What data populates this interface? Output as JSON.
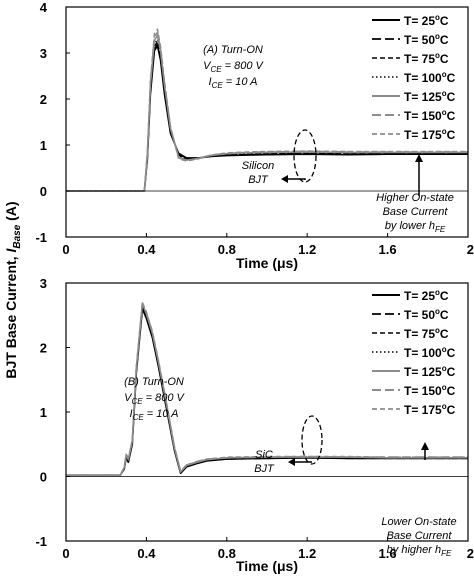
{
  "figure": {
    "ylabel_main": "BJT Base Current, ",
    "ylabel_var": "I",
    "ylabel_sub": "Base",
    "ylabel_unit": " (A)"
  },
  "chart_data": [
    {
      "type": "line",
      "xlabel": "Time (μs)",
      "xlim": [
        0,
        2
      ],
      "ylim": [
        -1,
        4
      ],
      "xticks": [
        "0",
        "0.4",
        "0.8",
        "1.2",
        "1.6",
        "2"
      ],
      "yticks": [
        "-1",
        "0",
        "1",
        "2",
        "3",
        "4"
      ],
      "legend_position": "top-right",
      "annotations": {
        "case_title": "(A) Turn-ON",
        "cond1_main": "V",
        "cond1_sub": "CE",
        "cond1_rest": " = 800 V",
        "cond2_main": "I",
        "cond2_sub": "CE",
        "cond2_rest": " = 10 A",
        "device_line1": "Silicon",
        "device_line2": "BJT",
        "note_line1": "Higher On-state",
        "note_line2": "Base Current",
        "note_line3_main": "by lower h",
        "note_line3_sub": "FE"
      },
      "series": [
        {
          "name": "T= 25°C",
          "color": "#000000",
          "dash": "solid",
          "width": 1.6,
          "x": [
            0,
            0.39,
            0.405,
            0.42,
            0.44,
            0.455,
            0.47,
            0.49,
            0.52,
            0.56,
            0.6,
            0.66,
            0.72,
            0.8,
            0.9,
            1.0,
            1.2,
            1.4,
            1.6,
            1.8,
            2.0
          ],
          "y": [
            0,
            0,
            0.7,
            2.1,
            3.05,
            3.15,
            2.85,
            2.1,
            1.25,
            0.82,
            0.72,
            0.72,
            0.75,
            0.77,
            0.78,
            0.79,
            0.8,
            0.79,
            0.8,
            0.8,
            0.8
          ]
        },
        {
          "name": "T= 50°C",
          "color": "#000000",
          "dash": "long",
          "width": 1.4,
          "x": [
            0,
            0.39,
            0.405,
            0.42,
            0.44,
            0.455,
            0.47,
            0.49,
            0.52,
            0.56,
            0.6,
            0.66,
            0.72,
            0.8,
            0.9,
            1.0,
            1.2,
            1.4,
            1.6,
            1.8,
            2.0
          ],
          "y": [
            0,
            0,
            0.72,
            2.15,
            3.1,
            3.2,
            2.9,
            2.15,
            1.28,
            0.8,
            0.71,
            0.72,
            0.75,
            0.78,
            0.79,
            0.8,
            0.81,
            0.8,
            0.81,
            0.81,
            0.81
          ]
        },
        {
          "name": "T= 75°C",
          "color": "#000000",
          "dash": "medium",
          "width": 1.2,
          "x": [
            0,
            0.39,
            0.405,
            0.42,
            0.44,
            0.455,
            0.47,
            0.49,
            0.52,
            0.56,
            0.6,
            0.66,
            0.72,
            0.8,
            0.9,
            1.0,
            1.2,
            1.4,
            1.6,
            1.8,
            2.0
          ],
          "y": [
            0,
            0,
            0.75,
            2.2,
            3.15,
            3.25,
            2.95,
            2.2,
            1.3,
            0.78,
            0.7,
            0.72,
            0.76,
            0.79,
            0.8,
            0.81,
            0.82,
            0.81,
            0.82,
            0.82,
            0.82
          ]
        },
        {
          "name": "T= 100°C",
          "color": "#000000",
          "dash": "dotted",
          "width": 1.2,
          "x": [
            0,
            0.39,
            0.405,
            0.42,
            0.44,
            0.455,
            0.47,
            0.49,
            0.52,
            0.56,
            0.6,
            0.66,
            0.72,
            0.8,
            0.9,
            1.0,
            1.2,
            1.4,
            1.6,
            1.8,
            2.0
          ],
          "y": [
            0,
            0,
            0.78,
            2.25,
            3.2,
            3.3,
            3.0,
            2.25,
            1.33,
            0.76,
            0.69,
            0.72,
            0.77,
            0.8,
            0.81,
            0.82,
            0.83,
            0.82,
            0.83,
            0.83,
            0.83
          ]
        },
        {
          "name": "T= 125°C",
          "color": "#8c8c8c",
          "dash": "solid",
          "width": 1.6,
          "x": [
            0,
            0.39,
            0.405,
            0.42,
            0.44,
            0.455,
            0.47,
            0.49,
            0.52,
            0.56,
            0.6,
            0.66,
            0.72,
            0.8,
            0.9,
            1.0,
            1.2,
            1.4,
            1.6,
            1.8,
            2.0
          ],
          "y": [
            0,
            0,
            0.8,
            2.3,
            3.28,
            3.38,
            3.05,
            2.3,
            1.36,
            0.74,
            0.67,
            0.71,
            0.77,
            0.81,
            0.83,
            0.84,
            0.85,
            0.84,
            0.84,
            0.84,
            0.84
          ]
        },
        {
          "name": "T= 150°C",
          "color": "#8c8c8c",
          "dash": "long",
          "width": 1.6,
          "x": [
            0,
            0.39,
            0.405,
            0.42,
            0.44,
            0.455,
            0.47,
            0.49,
            0.52,
            0.56,
            0.6,
            0.66,
            0.72,
            0.8,
            0.9,
            1.0,
            1.2,
            1.4,
            1.6,
            1.8,
            2.0
          ],
          "y": [
            0,
            0,
            0.82,
            2.35,
            3.35,
            3.45,
            3.1,
            2.35,
            1.38,
            0.72,
            0.66,
            0.71,
            0.78,
            0.82,
            0.84,
            0.85,
            0.86,
            0.85,
            0.85,
            0.85,
            0.85
          ]
        },
        {
          "name": "T= 175°C",
          "color": "#8c8c8c",
          "dash": "medium",
          "width": 1.4,
          "x": [
            0,
            0.39,
            0.405,
            0.42,
            0.44,
            0.455,
            0.47,
            0.49,
            0.52,
            0.56,
            0.6,
            0.66,
            0.72,
            0.8,
            0.9,
            1.0,
            1.2,
            1.4,
            1.6,
            1.8,
            2.0
          ],
          "y": [
            0,
            0,
            0.85,
            2.4,
            3.42,
            3.52,
            3.15,
            2.4,
            1.4,
            0.7,
            0.65,
            0.7,
            0.78,
            0.83,
            0.85,
            0.86,
            0.87,
            0.86,
            0.86,
            0.86,
            0.86
          ]
        }
      ]
    },
    {
      "type": "line",
      "xlabel": "Time (μs)",
      "xlim": [
        0,
        2
      ],
      "ylim": [
        -1,
        3
      ],
      "xticks": [
        "0",
        "0.4",
        "0.8",
        "1.2",
        "1.6",
        "2"
      ],
      "yticks": [
        "-1",
        "0",
        "1",
        "2",
        "3"
      ],
      "legend_position": "top-right",
      "annotations": {
        "case_title": "(B) Turn-ON",
        "cond1_main": "V",
        "cond1_sub": "CE",
        "cond1_rest": " = 800 V",
        "cond2_main": "I",
        "cond2_sub": "CE",
        "cond2_rest": " = 10 A",
        "device_line1": "SiC",
        "device_line2": "BJT",
        "note_line1": "Lower On-state",
        "note_line2": "Base Current",
        "note_line3_main": "by higher h",
        "note_line3_sub": "FE"
      },
      "series": [
        {
          "name": "T= 25°C",
          "color": "#000000",
          "dash": "solid",
          "width": 1.6,
          "x": [
            0,
            0.27,
            0.29,
            0.3,
            0.31,
            0.33,
            0.35,
            0.38,
            0.4,
            0.43,
            0.46,
            0.5,
            0.54,
            0.57,
            0.6,
            0.65,
            0.7,
            0.8,
            1.0,
            1.2,
            1.4,
            1.6,
            1.8,
            2.0
          ],
          "y": [
            0.02,
            0.02,
            0.12,
            0.3,
            0.22,
            0.5,
            1.6,
            2.6,
            2.45,
            2.15,
            1.7,
            1.05,
            0.4,
            0.05,
            0.15,
            0.2,
            0.24,
            0.27,
            0.28,
            0.29,
            0.28,
            0.28,
            0.28,
            0.28
          ]
        },
        {
          "name": "T= 50°C",
          "color": "#000000",
          "dash": "long",
          "width": 1.4,
          "x": [
            0,
            0.27,
            0.29,
            0.3,
            0.31,
            0.33,
            0.35,
            0.38,
            0.4,
            0.43,
            0.46,
            0.5,
            0.54,
            0.57,
            0.6,
            0.65,
            0.7,
            0.8,
            1.0,
            1.2,
            1.4,
            1.6,
            1.8,
            2.0
          ],
          "y": [
            0.02,
            0.02,
            0.12,
            0.31,
            0.23,
            0.52,
            1.62,
            2.62,
            2.47,
            2.17,
            1.72,
            1.07,
            0.41,
            0.06,
            0.16,
            0.21,
            0.25,
            0.27,
            0.28,
            0.29,
            0.28,
            0.28,
            0.28,
            0.28
          ]
        },
        {
          "name": "T= 75°C",
          "color": "#000000",
          "dash": "medium",
          "width": 1.2,
          "x": [
            0,
            0.27,
            0.29,
            0.3,
            0.31,
            0.33,
            0.35,
            0.38,
            0.4,
            0.43,
            0.46,
            0.5,
            0.54,
            0.57,
            0.6,
            0.65,
            0.7,
            0.8,
            1.0,
            1.2,
            1.4,
            1.6,
            1.8,
            2.0
          ],
          "y": [
            0.02,
            0.02,
            0.13,
            0.32,
            0.24,
            0.53,
            1.63,
            2.64,
            2.48,
            2.18,
            1.73,
            1.08,
            0.42,
            0.06,
            0.16,
            0.21,
            0.25,
            0.28,
            0.29,
            0.29,
            0.29,
            0.28,
            0.28,
            0.28
          ]
        },
        {
          "name": "T= 100°C",
          "color": "#000000",
          "dash": "dotted",
          "width": 1.2,
          "x": [
            0,
            0.27,
            0.29,
            0.3,
            0.31,
            0.33,
            0.35,
            0.38,
            0.4,
            0.43,
            0.46,
            0.5,
            0.54,
            0.57,
            0.6,
            0.65,
            0.7,
            0.8,
            1.0,
            1.2,
            1.4,
            1.6,
            1.8,
            2.0
          ],
          "y": [
            0.02,
            0.02,
            0.13,
            0.33,
            0.25,
            0.54,
            1.65,
            2.66,
            2.5,
            2.2,
            1.75,
            1.1,
            0.43,
            0.07,
            0.17,
            0.22,
            0.26,
            0.28,
            0.29,
            0.3,
            0.29,
            0.29,
            0.29,
            0.29
          ]
        },
        {
          "name": "T= 125°C",
          "color": "#8c8c8c",
          "dash": "solid",
          "width": 1.6,
          "x": [
            0,
            0.27,
            0.29,
            0.3,
            0.31,
            0.33,
            0.35,
            0.38,
            0.4,
            0.43,
            0.46,
            0.5,
            0.54,
            0.57,
            0.6,
            0.65,
            0.7,
            0.8,
            1.0,
            1.2,
            1.4,
            1.6,
            1.8,
            2.0
          ],
          "y": [
            0.02,
            0.02,
            0.14,
            0.34,
            0.26,
            0.55,
            1.67,
            2.68,
            2.52,
            2.22,
            1.77,
            1.12,
            0.44,
            0.07,
            0.17,
            0.22,
            0.26,
            0.29,
            0.3,
            0.3,
            0.3,
            0.29,
            0.29,
            0.29
          ]
        },
        {
          "name": "T= 150°C",
          "color": "#8c8c8c",
          "dash": "long",
          "width": 1.6,
          "x": [
            0,
            0.27,
            0.29,
            0.3,
            0.31,
            0.33,
            0.35,
            0.38,
            0.4,
            0.43,
            0.46,
            0.5,
            0.54,
            0.57,
            0.6,
            0.65,
            0.7,
            0.8,
            1.0,
            1.2,
            1.4,
            1.6,
            1.8,
            2.0
          ],
          "y": [
            0.02,
            0.02,
            0.14,
            0.35,
            0.27,
            0.56,
            1.68,
            2.69,
            2.54,
            2.24,
            1.78,
            1.13,
            0.45,
            0.08,
            0.18,
            0.23,
            0.27,
            0.29,
            0.3,
            0.31,
            0.3,
            0.3,
            0.3,
            0.3
          ]
        },
        {
          "name": "T= 175°C",
          "color": "#8c8c8c",
          "dash": "medium",
          "width": 1.4,
          "x": [
            0,
            0.27,
            0.29,
            0.3,
            0.31,
            0.33,
            0.35,
            0.38,
            0.4,
            0.43,
            0.46,
            0.5,
            0.54,
            0.57,
            0.6,
            0.65,
            0.7,
            0.8,
            1.0,
            1.2,
            1.4,
            1.6,
            1.8,
            2.0
          ],
          "y": [
            0.02,
            0.02,
            0.15,
            0.36,
            0.28,
            0.57,
            1.7,
            2.7,
            2.55,
            2.25,
            1.8,
            1.15,
            0.46,
            0.08,
            0.18,
            0.23,
            0.27,
            0.3,
            0.31,
            0.31,
            0.31,
            0.3,
            0.3,
            0.3
          ]
        }
      ]
    }
  ]
}
